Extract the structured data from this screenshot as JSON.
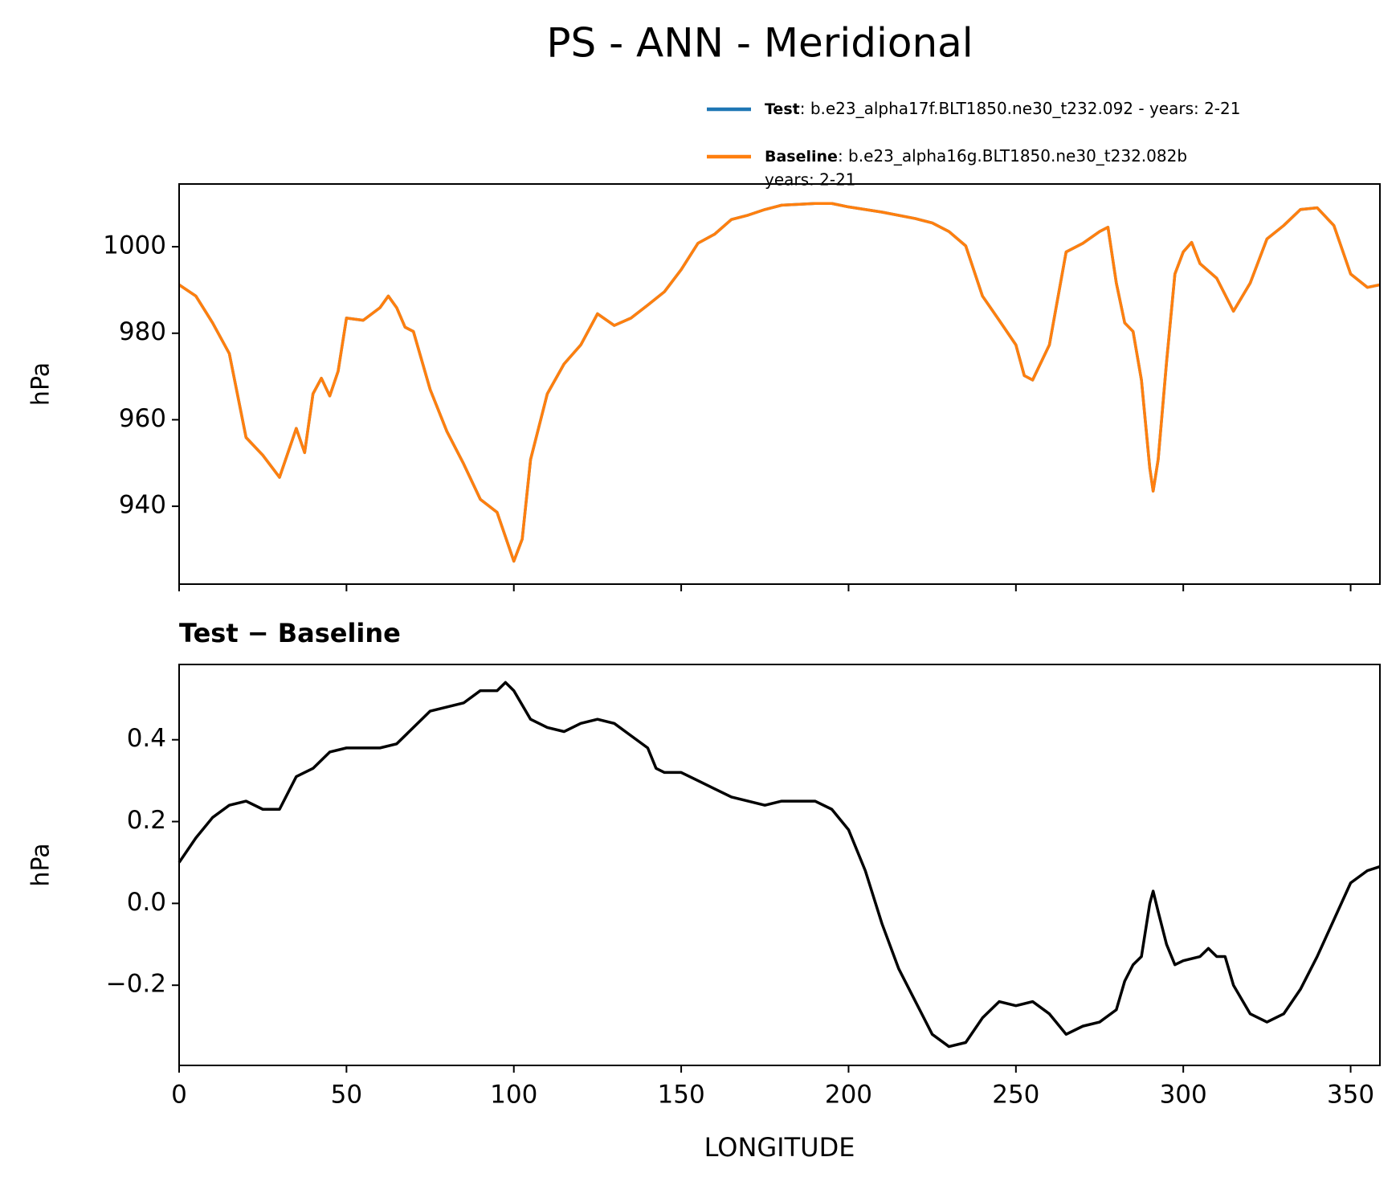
{
  "chart_data": [
    {
      "type": "line",
      "title": "PS - ANN - Meridional",
      "ylabel": "hPa",
      "x": [
        0,
        5,
        10,
        15,
        20,
        25,
        30,
        35,
        37.5,
        40,
        42.5,
        45,
        47.5,
        50,
        55,
        60,
        62.5,
        65,
        67.5,
        70,
        75,
        80,
        85,
        90,
        95,
        100,
        102.5,
        105,
        110,
        115,
        120,
        125,
        130,
        135,
        140,
        145,
        150,
        155,
        160,
        165,
        170,
        175,
        180,
        190,
        195,
        200,
        210,
        220,
        225,
        230,
        235,
        240,
        245,
        250,
        252.5,
        255,
        260,
        265,
        270,
        275,
        277.5,
        280,
        282.5,
        285,
        287.5,
        290,
        291,
        292.5,
        295,
        297.5,
        300,
        302.5,
        305,
        310,
        315,
        320,
        325,
        330,
        335,
        340,
        345,
        350,
        355,
        358.75
      ],
      "series": [
        {
          "name": "Test",
          "label_lines": [
            ": b.e23_alpha17f.BLT1850.ne30_t232.092 - years: 2-21"
          ],
          "color": "#1f77b4",
          "values": [
            991.2,
            988.6,
            982.4,
            975.3,
            955.9,
            951.8,
            946.7,
            958,
            952.4,
            966,
            969.6,
            965.5,
            971.2,
            983.5,
            983,
            985.9,
            988.6,
            985.9,
            981.4,
            980.4,
            967,
            957.3,
            949.8,
            941.6,
            938.6,
            927.3,
            932.4,
            950.8,
            966,
            972.9,
            977.3,
            984.5,
            981.8,
            983.5,
            986.5,
            989.6,
            994.7,
            1000.8,
            1002.9,
            1006.3,
            1007.3,
            1008.6,
            1009.6,
            1010,
            1010,
            1009.2,
            1008,
            1006.5,
            1005.5,
            1003.5,
            1000.2,
            988.6,
            983,
            977.3,
            970.2,
            969.2,
            977.3,
            998.8,
            1000.8,
            1003.5,
            1004.5,
            991.6,
            982.4,
            980.4,
            969.2,
            948.8,
            943.5,
            950.8,
            973.3,
            993.7,
            998.8,
            1001,
            996.1,
            992.7,
            985.1,
            991.6,
            1001.8,
            1004.9,
            1008.6,
            1009,
            1004.9,
            993.7,
            990.6,
            991.2
          ]
        },
        {
          "name": "Baseline",
          "label_lines": [
            ": b.e23_alpha16g.BLT1850.ne30_t232.082b",
            "years: 2-21"
          ],
          "color": "#ff7f0e",
          "values": [
            991.2,
            988.6,
            982.4,
            975.3,
            955.9,
            951.8,
            946.7,
            958,
            952.4,
            966,
            969.6,
            965.5,
            971.2,
            983.5,
            983,
            985.9,
            988.6,
            985.9,
            981.4,
            980.4,
            967,
            957.3,
            949.8,
            941.6,
            938.6,
            927.3,
            932.4,
            950.8,
            966,
            972.9,
            977.3,
            984.5,
            981.8,
            983.5,
            986.5,
            989.6,
            994.7,
            1000.8,
            1002.9,
            1006.3,
            1007.3,
            1008.6,
            1009.6,
            1010,
            1010,
            1009.2,
            1008,
            1006.5,
            1005.5,
            1003.5,
            1000.2,
            988.6,
            983,
            977.3,
            970.2,
            969.2,
            977.3,
            998.8,
            1000.8,
            1003.5,
            1004.5,
            991.6,
            982.4,
            980.4,
            969.2,
            948.8,
            943.5,
            950.8,
            973.3,
            993.7,
            998.8,
            1001,
            996.1,
            992.7,
            985.1,
            991.6,
            1001.8,
            1004.9,
            1008.6,
            1009,
            1004.9,
            993.7,
            990.6,
            991.2
          ]
        }
      ],
      "xlim": [
        0,
        358.75
      ],
      "xticks": [
        0,
        50,
        100,
        150,
        200,
        250,
        300,
        350
      ],
      "ylim": [
        922,
        1014.5
      ],
      "yticks": [
        940,
        960,
        980,
        1000
      ]
    },
    {
      "type": "line",
      "title": "Test − Baseline",
      "ylabel": "hPa",
      "xlabel": "LONGITUDE",
      "x": [
        0,
        5,
        10,
        15,
        20,
        25,
        30,
        35,
        40,
        45,
        50,
        55,
        60,
        65,
        70,
        75,
        80,
        85,
        90,
        95,
        97.5,
        100,
        105,
        110,
        115,
        120,
        125,
        130,
        135,
        140,
        142.5,
        145,
        150,
        155,
        160,
        165,
        170,
        175,
        180,
        190,
        195,
        200,
        205,
        210,
        215,
        220,
        225,
        230,
        235,
        240,
        245,
        250,
        255,
        260,
        265,
        270,
        275,
        280,
        282.5,
        285,
        287.5,
        290,
        291,
        292.5,
        295,
        297.5,
        300,
        305,
        307.5,
        310,
        312.5,
        315,
        320,
        325,
        330,
        335,
        340,
        345,
        350,
        355,
        358.75
      ],
      "values": [
        0.1,
        0.16,
        0.21,
        0.24,
        0.25,
        0.23,
        0.23,
        0.31,
        0.33,
        0.37,
        0.38,
        0.38,
        0.38,
        0.39,
        0.43,
        0.47,
        0.48,
        0.49,
        0.52,
        0.52,
        0.54,
        0.52,
        0.45,
        0.43,
        0.42,
        0.44,
        0.45,
        0.44,
        0.41,
        0.38,
        0.33,
        0.32,
        0.32,
        0.3,
        0.28,
        0.26,
        0.25,
        0.24,
        0.25,
        0.25,
        0.23,
        0.18,
        0.08,
        -0.05,
        -0.16,
        -0.24,
        -0.32,
        -0.35,
        -0.34,
        -0.28,
        -0.24,
        -0.25,
        -0.24,
        -0.27,
        -0.32,
        -0.3,
        -0.29,
        -0.26,
        -0.19,
        -0.15,
        -0.13,
        0.0,
        0.03,
        -0.02,
        -0.1,
        -0.15,
        -0.14,
        -0.13,
        -0.11,
        -0.13,
        -0.13,
        -0.2,
        -0.27,
        -0.29,
        -0.27,
        -0.21,
        -0.13,
        -0.04,
        0.05,
        0.08,
        0.09
      ],
      "color": "#000000",
      "xlim": [
        0,
        358.75
      ],
      "xticks": [
        0,
        50,
        100,
        150,
        200,
        250,
        300,
        350
      ],
      "ylim": [
        -0.396,
        0.584
      ],
      "yticks": [
        {
          "value": -0.2,
          "label": "−0.2"
        },
        {
          "value": 0,
          "label": "0.0"
        },
        0.2,
        0.4
      ]
    }
  ]
}
